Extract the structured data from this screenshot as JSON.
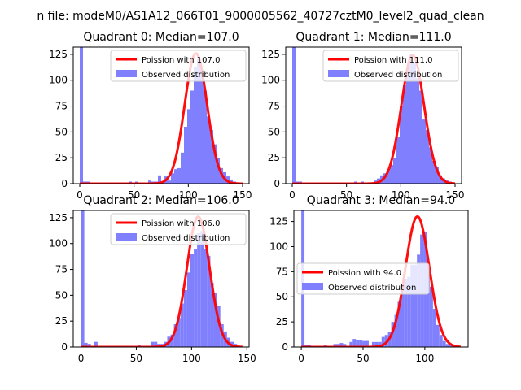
{
  "figure": {
    "suptitle": "n file: modeM0/AS1A12_066T01_9000005562_40727cztM0_level2_quad_clean"
  },
  "colors": {
    "histogram": "#8080ff",
    "poisson_line": "#ff0000"
  },
  "chart_data": [
    {
      "type": "bar",
      "title": "Quadrant 0: Median=107.0",
      "xlim": [
        -6,
        156
      ],
      "ylim": [
        0,
        132
      ],
      "xticks": [
        0,
        50,
        100,
        150
      ],
      "yticks": [
        0,
        25,
        50,
        75,
        100,
        125
      ],
      "bin_width": 3,
      "observed": [
        [
          0,
          132
        ],
        [
          3,
          2
        ],
        [
          6,
          2
        ],
        [
          21,
          1
        ],
        [
          39,
          1
        ],
        [
          45,
          2
        ],
        [
          51,
          2
        ],
        [
          54,
          1
        ],
        [
          63,
          3
        ],
        [
          66,
          2
        ],
        [
          69,
          2
        ],
        [
          72,
          8
        ],
        [
          75,
          2
        ],
        [
          78,
          7
        ],
        [
          81,
          3
        ],
        [
          84,
          10
        ],
        [
          87,
          14
        ],
        [
          90,
          15
        ],
        [
          93,
          30
        ],
        [
          96,
          55
        ],
        [
          99,
          72
        ],
        [
          102,
          90
        ],
        [
          105,
          113
        ],
        [
          108,
          120
        ],
        [
          111,
          110
        ],
        [
          114,
          90
        ],
        [
          117,
          65
        ],
        [
          120,
          52
        ],
        [
          123,
          38
        ],
        [
          126,
          25
        ],
        [
          129,
          15
        ],
        [
          132,
          11
        ],
        [
          135,
          7
        ],
        [
          138,
          4
        ],
        [
          141,
          2
        ],
        [
          144,
          1
        ]
      ],
      "poisson": {
        "label": "Poission with 107.0",
        "mean": 107.0,
        "peak": 126
      },
      "legend": {
        "poisson_label": "Poission with 107.0",
        "hist_label": "Observed distribution",
        "position": "upper right"
      }
    },
    {
      "type": "bar",
      "title": "Quadrant 1: Median=111.0",
      "xlim": [
        -6,
        156
      ],
      "ylim": [
        0,
        132
      ],
      "xticks": [
        0,
        50,
        100,
        150
      ],
      "yticks": [
        0,
        25,
        50,
        75,
        100,
        125
      ],
      "bin_width": 3,
      "observed": [
        [
          0,
          132
        ],
        [
          3,
          2
        ],
        [
          6,
          2
        ],
        [
          21,
          1
        ],
        [
          39,
          1
        ],
        [
          45,
          1
        ],
        [
          57,
          2
        ],
        [
          63,
          2
        ],
        [
          69,
          1
        ],
        [
          75,
          3
        ],
        [
          78,
          5
        ],
        [
          81,
          8
        ],
        [
          84,
          10
        ],
        [
          87,
          13
        ],
        [
          90,
          18
        ],
        [
          93,
          25
        ],
        [
          96,
          45
        ],
        [
          99,
          75
        ],
        [
          102,
          95
        ],
        [
          105,
          112
        ],
        [
          108,
          125
        ],
        [
          111,
          117
        ],
        [
          114,
          102
        ],
        [
          117,
          90
        ],
        [
          120,
          62
        ],
        [
          123,
          52
        ],
        [
          126,
          35
        ],
        [
          129,
          22
        ],
        [
          132,
          16
        ],
        [
          135,
          8
        ],
        [
          138,
          5
        ],
        [
          141,
          3
        ],
        [
          144,
          2
        ]
      ],
      "poisson": {
        "label": "Poission with 111.0",
        "mean": 111.0,
        "peak": 124
      },
      "legend": {
        "poisson_label": "Poission with 111.0",
        "hist_label": "Observed distribution",
        "position": "upper right"
      }
    },
    {
      "type": "bar",
      "title": "Quadrant 2: Median=106.0",
      "xlim": [
        -7,
        152
      ],
      "ylim": [
        0,
        132
      ],
      "xticks": [
        0,
        50,
        100,
        150
      ],
      "yticks": [
        0,
        25,
        50,
        75,
        100,
        125
      ],
      "bin_width": 3,
      "observed": [
        [
          0,
          132
        ],
        [
          3,
          4
        ],
        [
          6,
          3
        ],
        [
          12,
          5
        ],
        [
          21,
          1
        ],
        [
          39,
          1
        ],
        [
          51,
          2
        ],
        [
          63,
          5
        ],
        [
          66,
          5
        ],
        [
          69,
          3
        ],
        [
          72,
          3
        ],
        [
          75,
          5
        ],
        [
          78,
          10
        ],
        [
          81,
          12
        ],
        [
          84,
          22
        ],
        [
          87,
          28
        ],
        [
          90,
          42
        ],
        [
          93,
          55
        ],
        [
          96,
          72
        ],
        [
          99,
          90
        ],
        [
          102,
          95
        ],
        [
          105,
          110
        ],
        [
          108,
          112
        ],
        [
          111,
          95
        ],
        [
          114,
          88
        ],
        [
          117,
          62
        ],
        [
          120,
          52
        ],
        [
          123,
          40
        ],
        [
          126,
          22
        ],
        [
          129,
          15
        ],
        [
          132,
          9
        ],
        [
          135,
          5
        ],
        [
          138,
          3
        ],
        [
          141,
          1
        ]
      ],
      "poisson": {
        "label": "Poission with 106.0",
        "mean": 106.0,
        "peak": 126
      },
      "legend": {
        "poisson_label": "Poission with 106.0",
        "hist_label": "Observed distribution",
        "position": "upper right"
      }
    },
    {
      "type": "bar",
      "title": "Quadrant 3: Median=94.0",
      "xlim": [
        -6,
        135
      ],
      "ylim": [
        0,
        136
      ],
      "xticks": [
        0,
        50,
        100
      ],
      "yticks": [
        0,
        25,
        50,
        75,
        100,
        125
      ],
      "bin_width": 2.6,
      "observed": [
        [
          0,
          136
        ],
        [
          2.6,
          2
        ],
        [
          5.2,
          2
        ],
        [
          13,
          1
        ],
        [
          18.2,
          2
        ],
        [
          26,
          3
        ],
        [
          28.6,
          3
        ],
        [
          31.2,
          4
        ],
        [
          33.8,
          3
        ],
        [
          39,
          5
        ],
        [
          41.6,
          8
        ],
        [
          44.2,
          7
        ],
        [
          46.8,
          7
        ],
        [
          49.4,
          6
        ],
        [
          52,
          6
        ],
        [
          57.2,
          5
        ],
        [
          59.8,
          5
        ],
        [
          62.4,
          5
        ],
        [
          65,
          10
        ],
        [
          67.6,
          12
        ],
        [
          70.2,
          15
        ],
        [
          72.8,
          25
        ],
        [
          75.4,
          32
        ],
        [
          78,
          45
        ],
        [
          80.6,
          62
        ],
        [
          83.2,
          68
        ],
        [
          85.8,
          70
        ],
        [
          88.4,
          82
        ],
        [
          91,
          82
        ],
        [
          93.6,
          92
        ],
        [
          96.2,
          112
        ],
        [
          98.8,
          115
        ],
        [
          101.4,
          82
        ],
        [
          104,
          60
        ],
        [
          106.6,
          38
        ],
        [
          109.2,
          22
        ],
        [
          111.8,
          12
        ],
        [
          114.4,
          6
        ],
        [
          117,
          3
        ],
        [
          119.6,
          2
        ],
        [
          122.2,
          1
        ]
      ],
      "poisson": {
        "label": "Poission with 94.0",
        "mean": 94.0,
        "peak": 130
      },
      "legend": {
        "poisson_label": "Poission with 94.0",
        "hist_label": "Observed distribution",
        "position": "center left"
      }
    }
  ]
}
